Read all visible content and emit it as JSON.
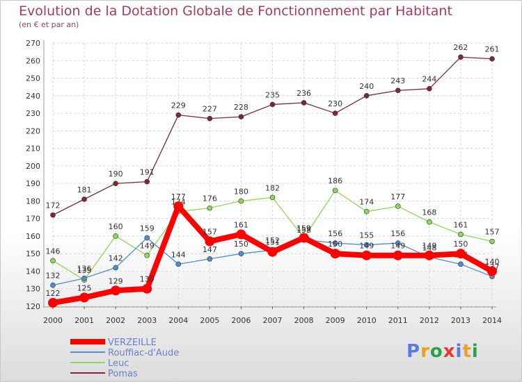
{
  "title": "Evolution de la Dotation Globale de Fonctionnement par Habitant",
  "subtitle": "(en € et par an)",
  "logo": {
    "text": "Proxiti",
    "colors": [
      "#5b7be0",
      "#f0a020",
      "#2aa14a",
      "#e63a2e"
    ]
  },
  "chart_data": {
    "type": "line",
    "title": "Evolution de la Dotation Globale de Fonctionnement par Habitant",
    "ylabel": "(en € et par an)",
    "xlabel": "",
    "x": [
      "2000",
      "2001",
      "2002",
      "2003",
      "2004",
      "2005",
      "2006",
      "2007",
      "2008",
      "2009",
      "2010",
      "2011",
      "2012",
      "2013",
      "2014"
    ],
    "ylim": [
      120,
      270
    ],
    "yticks": [
      120,
      130,
      140,
      150,
      160,
      170,
      180,
      190,
      200,
      210,
      220,
      230,
      240,
      250,
      260,
      270
    ],
    "grid": true,
    "legend_position": "bottom-left",
    "series": [
      {
        "name": "Pomas",
        "color": "#7a2a35",
        "values": [
          172,
          181,
          190,
          191,
          229,
          227,
          228,
          235,
          236,
          230,
          240,
          243,
          244,
          262,
          261
        ]
      },
      {
        "name": "Leuc",
        "color": "#8fd65a",
        "values": [
          146,
          135,
          160,
          149,
          174,
          176,
          180,
          182,
          159,
          186,
          174,
          177,
          168,
          161,
          157
        ]
      },
      {
        "name": "Rouffiac-d'Aude",
        "color": "#4f8fd0",
        "values": [
          132,
          136,
          142,
          159,
          144,
          147,
          150,
          152,
          158,
          156,
          155,
          156,
          148,
          144,
          137
        ]
      },
      {
        "name": "VERZEILLE",
        "color": "#ff0000",
        "values": [
          122,
          125,
          129,
          130,
          177,
          157,
          161,
          151,
          159,
          150,
          149,
          149,
          149,
          150,
          140
        ]
      }
    ],
    "legend_order": [
      "VERZEILLE",
      "Rouffiac-d'Aude",
      "Leuc",
      "Pomas"
    ]
  }
}
